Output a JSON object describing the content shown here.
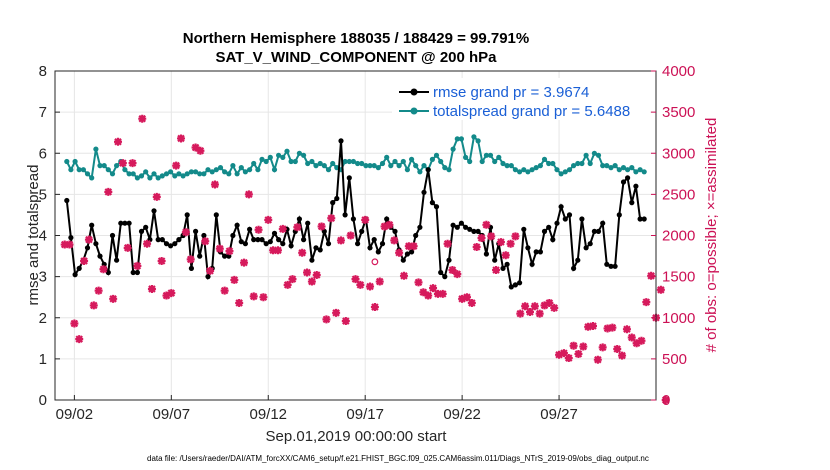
{
  "chart_data": {
    "type": "line",
    "title": "Northern Hemisphere 188035 / 188429 = 99.791%",
    "subtitle": "SAT_V_WIND_COMPONENT @ 200 hPa",
    "xlabel": "Sep.01,2019 00:00:00 start",
    "ylabel": "rmse and totalspread",
    "y2label": "# of obs: o=possible; ×=assimilated",
    "xlim": [
      0.5,
      31.5
    ],
    "ylim": [
      0,
      8
    ],
    "y2lim": [
      0,
      4000
    ],
    "x_ticks": [
      1.5,
      6.5,
      11.5,
      16.5,
      21.5,
      26.5
    ],
    "x_tick_labels": [
      "09/02",
      "09/07",
      "09/12",
      "09/17",
      "09/22",
      "09/27"
    ],
    "y_ticks": [
      0,
      1,
      2,
      3,
      4,
      5,
      6,
      7,
      8
    ],
    "y2_ticks": [
      0,
      500,
      1000,
      1500,
      2000,
      2500,
      3000,
      3500,
      4000
    ],
    "legend": [
      {
        "label": "rmse grand pr = 3.9674",
        "color": "#000000"
      },
      {
        "label": "totalspread grand pr = 5.6488",
        "color": "#138a8a"
      }
    ],
    "footer": "data file: /Users/raeder/DAI/ATM_forcXX/CAM6_setup/f.e21.FHIST_BGC.f09_025.CAM6assim.011/Diags_NTrS_2019-09/obs_diag_output.nc",
    "series": [
      {
        "name": "rmse",
        "axis": "left",
        "color": "#000000",
        "values": [
          4.85,
          3.95,
          3.05,
          3.2,
          3.4,
          3.7,
          4.25,
          3.8,
          3.5,
          3.3,
          3.1,
          4.0,
          3.4,
          4.3,
          4.3,
          4.3,
          3.1,
          3.1,
          4.1,
          4.2,
          3.9,
          4.6,
          3.9,
          3.9,
          3.8,
          3.75,
          3.8,
          3.9,
          4.0,
          4.5,
          3.2,
          4.1,
          3.5,
          4.0,
          3.0,
          3.2,
          4.5,
          3.6,
          3.5,
          3.5,
          4.0,
          4.25,
          3.85,
          3.8,
          4.15,
          3.9,
          3.9,
          3.9,
          3.8,
          3.85,
          4.05,
          3.9,
          3.8,
          4.15,
          3.75,
          4.1,
          4.4,
          3.9,
          4.3,
          3.4,
          3.7,
          3.65,
          4.1,
          3.8,
          4.8,
          4.9,
          6.3,
          4.5,
          5.4,
          4.4,
          3.8,
          4.1,
          4.4,
          3.7,
          3.9,
          3.6,
          3.8,
          4.4,
          4.2,
          4.1,
          3.65,
          3.4,
          3.55,
          3.6,
          4.0,
          4.2,
          5.05,
          5.6,
          4.8,
          4.7,
          3.1,
          3.0,
          3.4,
          4.25,
          4.2,
          4.3,
          4.2,
          4.15,
          4.1,
          4.1,
          4.0,
          3.55,
          4.2,
          3.4,
          3.8,
          3.2,
          3.3,
          2.75,
          2.8,
          2.85,
          4.15,
          3.7,
          3.3,
          3.6,
          3.6,
          4.1,
          4.2,
          3.9,
          4.3,
          4.7,
          4.4,
          4.5,
          3.2,
          3.4,
          4.4,
          3.7,
          3.8,
          4.1,
          4.1,
          4.3,
          3.3,
          3.25,
          3.25,
          4.5,
          5.3,
          5.4,
          4.8,
          5.2,
          4.4,
          4.4
        ]
      },
      {
        "name": "totalspread",
        "axis": "left",
        "color": "#138a8a",
        "values": [
          5.8,
          5.6,
          5.8,
          5.6,
          5.6,
          5.5,
          5.4,
          6.1,
          5.7,
          5.7,
          5.6,
          5.5,
          5.7,
          5.8,
          5.6,
          5.5,
          5.5,
          5.4,
          5.45,
          5.55,
          5.4,
          5.5,
          5.4,
          5.45,
          5.5,
          5.55,
          5.45,
          5.5,
          5.45,
          5.5,
          5.55,
          5.55,
          5.5,
          5.5,
          5.6,
          5.55,
          5.6,
          5.65,
          5.55,
          5.5,
          5.7,
          5.5,
          5.65,
          5.55,
          5.6,
          5.75,
          5.6,
          5.85,
          5.8,
          5.9,
          5.6,
          5.95,
          5.9,
          6.05,
          5.8,
          5.8,
          6.0,
          5.95,
          5.75,
          5.8,
          5.7,
          5.75,
          5.7,
          5.6,
          5.75,
          5.65,
          5.6,
          5.8,
          5.8,
          5.8,
          5.75,
          5.75,
          5.7,
          5.7,
          5.7,
          5.65,
          5.75,
          5.9,
          5.7,
          5.8,
          5.7,
          5.8,
          5.6,
          5.85,
          5.7,
          5.55,
          5.7,
          5.6,
          5.85,
          5.95,
          5.8,
          5.65,
          5.6,
          6.1,
          6.35,
          6.35,
          5.9,
          5.8,
          6.4,
          6.3,
          5.8,
          5.95,
          5.95,
          5.8,
          5.9,
          5.75,
          5.7,
          5.7,
          5.6,
          5.55,
          5.6,
          5.55,
          5.6,
          5.65,
          5.7,
          5.85,
          5.75,
          5.75,
          5.6,
          5.5,
          5.55,
          5.6,
          5.7,
          5.75,
          5.75,
          5.95,
          5.75,
          6.0,
          5.95,
          5.7,
          5.7,
          5.65,
          5.7,
          5.6,
          5.65,
          5.6,
          5.65,
          5.55,
          5.6,
          5.55
        ]
      },
      {
        "name": "obs count (assimilated)",
        "axis": "right",
        "color": "#d61a5c",
        "points": [
          [
            1.0,
            1890
          ],
          [
            1.25,
            1890
          ],
          [
            1.5,
            930
          ],
          [
            1.75,
            740
          ],
          [
            2.0,
            1690
          ],
          [
            2.25,
            1950
          ],
          [
            2.5,
            1150
          ],
          [
            2.75,
            1330
          ],
          [
            3.0,
            1590
          ],
          [
            3.25,
            2530
          ],
          [
            3.5,
            1230
          ],
          [
            3.75,
            3140
          ],
          [
            4.0,
            2880
          ],
          [
            4.25,
            1850
          ],
          [
            4.5,
            2880
          ],
          [
            4.75,
            1630
          ],
          [
            5.0,
            3420
          ],
          [
            5.25,
            1900
          ],
          [
            5.5,
            1350
          ],
          [
            5.75,
            2470
          ],
          [
            6.0,
            1690
          ],
          [
            6.25,
            1270
          ],
          [
            6.5,
            1300
          ],
          [
            6.75,
            2850
          ],
          [
            7.0,
            3180
          ],
          [
            7.25,
            2040
          ],
          [
            7.5,
            1710
          ],
          [
            7.75,
            3070
          ],
          [
            8.0,
            3030
          ],
          [
            8.25,
            1930
          ],
          [
            8.5,
            1570
          ],
          [
            8.75,
            2620
          ],
          [
            9.0,
            1840
          ],
          [
            9.25,
            1330
          ],
          [
            9.5,
            1810
          ],
          [
            9.75,
            1460
          ],
          [
            10.0,
            1180
          ],
          [
            10.25,
            1670
          ],
          [
            10.5,
            2500
          ],
          [
            10.75,
            1260
          ],
          [
            11.0,
            2070
          ],
          [
            11.25,
            1250
          ],
          [
            11.5,
            2190
          ],
          [
            11.75,
            1820
          ],
          [
            12.0,
            1820
          ],
          [
            12.25,
            2080
          ],
          [
            12.5,
            1400
          ],
          [
            12.75,
            1470
          ],
          [
            13.0,
            2100
          ],
          [
            13.25,
            1790
          ],
          [
            13.5,
            1550
          ],
          [
            13.75,
            1440
          ],
          [
            14.0,
            1520
          ],
          [
            14.25,
            2110
          ],
          [
            14.5,
            980
          ],
          [
            14.75,
            2210
          ],
          [
            15.0,
            1060
          ],
          [
            15.25,
            1940
          ],
          [
            15.5,
            960
          ],
          [
            15.75,
            2000
          ],
          [
            16.0,
            1470
          ],
          [
            16.25,
            1400
          ],
          [
            16.5,
            2190
          ],
          [
            16.75,
            1380
          ],
          [
            17.0,
            1130
          ],
          [
            17.25,
            1440
          ],
          [
            17.5,
            2110
          ],
          [
            17.75,
            2130
          ],
          [
            18.0,
            1940
          ],
          [
            18.25,
            1790
          ],
          [
            18.5,
            1510
          ],
          [
            18.75,
            1870
          ],
          [
            19.0,
            1870
          ],
          [
            19.25,
            1430
          ],
          [
            19.5,
            1310
          ],
          [
            19.75,
            1270
          ],
          [
            20.0,
            1360
          ],
          [
            20.25,
            1290
          ],
          [
            20.5,
            1290
          ],
          [
            20.75,
            1900
          ],
          [
            21.0,
            1580
          ],
          [
            21.25,
            1530
          ],
          [
            21.5,
            1230
          ],
          [
            21.75,
            1250
          ],
          [
            22.0,
            1180
          ],
          [
            22.25,
            1860
          ],
          [
            22.5,
            1970
          ],
          [
            22.75,
            2130
          ],
          [
            23.0,
            1990
          ],
          [
            23.25,
            1580
          ],
          [
            23.5,
            1920
          ],
          [
            23.75,
            1760
          ],
          [
            24.0,
            1900
          ],
          [
            24.25,
            1990
          ],
          [
            24.5,
            1050
          ],
          [
            24.75,
            1140
          ],
          [
            25.0,
            1070
          ],
          [
            25.25,
            1140
          ],
          [
            25.5,
            1050
          ],
          [
            25.75,
            1150
          ],
          [
            26.0,
            1180
          ],
          [
            26.25,
            1120
          ],
          [
            26.5,
            550
          ],
          [
            26.75,
            570
          ],
          [
            27.0,
            510
          ],
          [
            27.25,
            660
          ],
          [
            27.5,
            560
          ],
          [
            27.75,
            650
          ],
          [
            28.0,
            890
          ],
          [
            28.25,
            900
          ],
          [
            28.5,
            490
          ],
          [
            28.75,
            640
          ],
          [
            29.0,
            870
          ],
          [
            29.25,
            880
          ],
          [
            29.5,
            620
          ],
          [
            29.75,
            540
          ],
          [
            30.0,
            860
          ],
          [
            30.25,
            760
          ],
          [
            30.5,
            690
          ],
          [
            30.75,
            720
          ],
          [
            31.0,
            1190
          ],
          [
            31.25,
            1510
          ],
          [
            31.5,
            1000
          ],
          [
            31.75,
            1340
          ],
          [
            32.0,
            0
          ]
        ]
      },
      {
        "name": "obs count (possible)",
        "axis": "right",
        "color": "#d61a5c",
        "points": [
          [
            17.0,
            1680
          ]
        ]
      }
    ]
  }
}
